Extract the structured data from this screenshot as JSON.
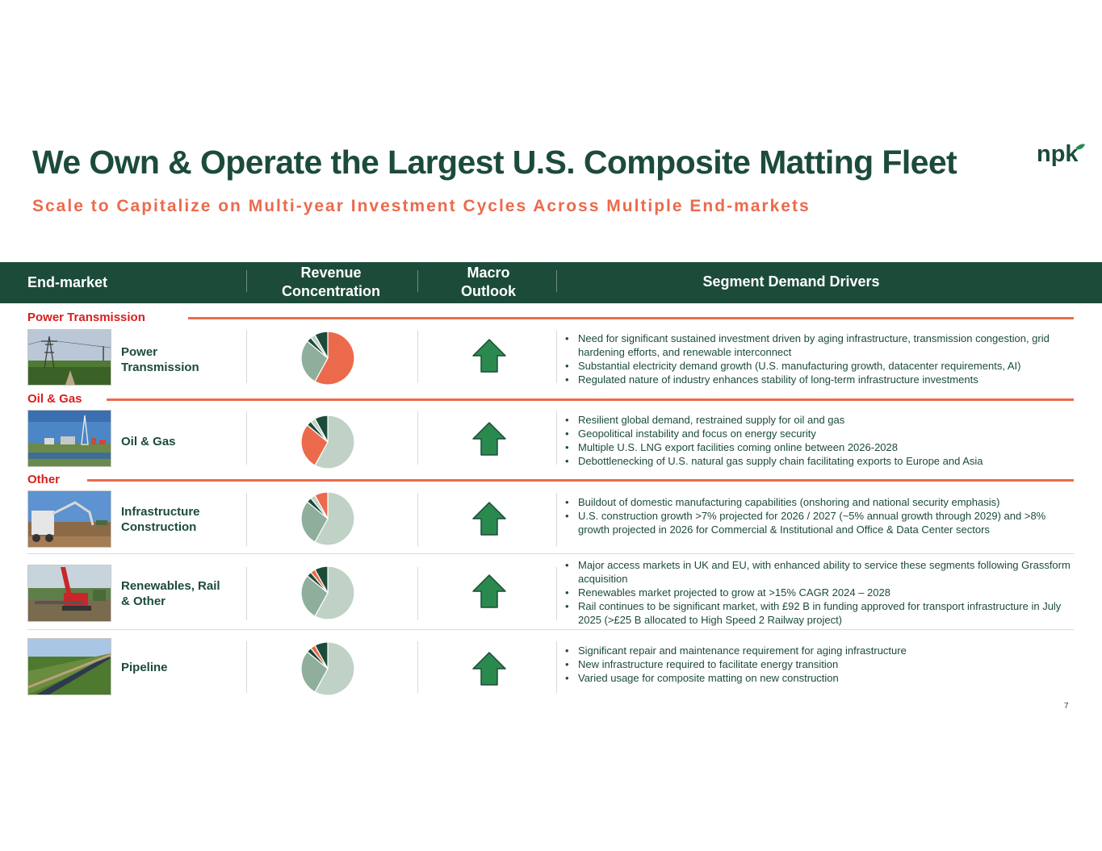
{
  "title": "We Own & Operate the Largest U.S. Composite Matting Fleet",
  "subtitle": "Scale to Capitalize on Multi-year Investment Cycles Across Multiple End-markets",
  "logo_text": "npk",
  "header": {
    "end_market": "End-market",
    "revenue_l1": "Revenue",
    "revenue_l2": "Concentration",
    "macro_l1": "Macro",
    "macro_l2": "Outlook",
    "drivers": "Segment Demand Drivers"
  },
  "sections": {
    "power": "Power Transmission",
    "oil": "Oil & Gas",
    "other": "Other"
  },
  "colors": {
    "dark_green": "#1c4b3a",
    "coral": "#ec6a4c",
    "mid_green": "#8fae9c",
    "light_green": "#bfd2c5",
    "arrow_green": "#2a8a4e",
    "section_red": "#d81e1e"
  },
  "rows": [
    {
      "name": "Power\nTransmission",
      "photo": "transmission-tower-photo",
      "highlight": 0,
      "pie": [
        58,
        28,
        3,
        3,
        8
      ],
      "bullets": [
        "Need for significant sustained investment driven by aging infrastructure, transmission congestion, grid hardening efforts, and renewable interconnect",
        "Substantial electricity demand growth (U.S. manufacturing growth, datacenter requirements, AI)",
        "Regulated nature of industry enhances stability of long-term infrastructure investments"
      ]
    },
    {
      "name": "Oil & Gas",
      "photo": "drilling-rig-photo",
      "highlight": 1,
      "pie": [
        58,
        28,
        3,
        3,
        8
      ],
      "bullets": [
        "Resilient global demand, restrained supply for oil and gas",
        "Geopolitical instability and focus on energy security",
        "Multiple U.S. LNG export facilities coming online between 2026-2028",
        "Debottlenecking  of U.S. natural gas supply chain facilitating exports to Europe and Asia"
      ]
    },
    {
      "name": "Infrastructure\nConstruction",
      "photo": "concrete-pump-photo",
      "highlight": 4,
      "pie": [
        58,
        28,
        3,
        3,
        8
      ],
      "bullets": [
        "Buildout of domestic manufacturing capabilities  (onshoring and national security emphasis)",
        "U.S. construction growth >7% projected for 2026 / 2027 (~5% annual growth through 2029) and >8% growth projected in 2026 for Commercial & Institutional and Office & Data Center sectors"
      ]
    },
    {
      "name": "Renewables, Rail\n& Other",
      "photo": "crawler-crane-photo",
      "highlight": 3,
      "pie": [
        58,
        28,
        3,
        3,
        8
      ],
      "bullets": [
        "Major access markets in UK and EU, with enhanced ability to service these segments following Grassform acquisition",
        "Renewables market projected to grow at >15% CAGR 2024 – 2028",
        "Rail continues to be significant market, with £92 B in funding approved for transport infrastructure in July 2025 (>£25 B allocated to High Speed 2 Railway project)"
      ]
    },
    {
      "name": "Pipeline",
      "photo": "pipeline-photo",
      "highlight": 3,
      "pie": [
        58,
        28,
        3,
        3,
        8
      ],
      "bullets": [
        "Significant repair and maintenance requirement for aging infrastructure",
        "New infrastructure required to facilitate energy transition",
        "Varied usage for composite matting on new construction"
      ]
    }
  ],
  "page_number": "7"
}
